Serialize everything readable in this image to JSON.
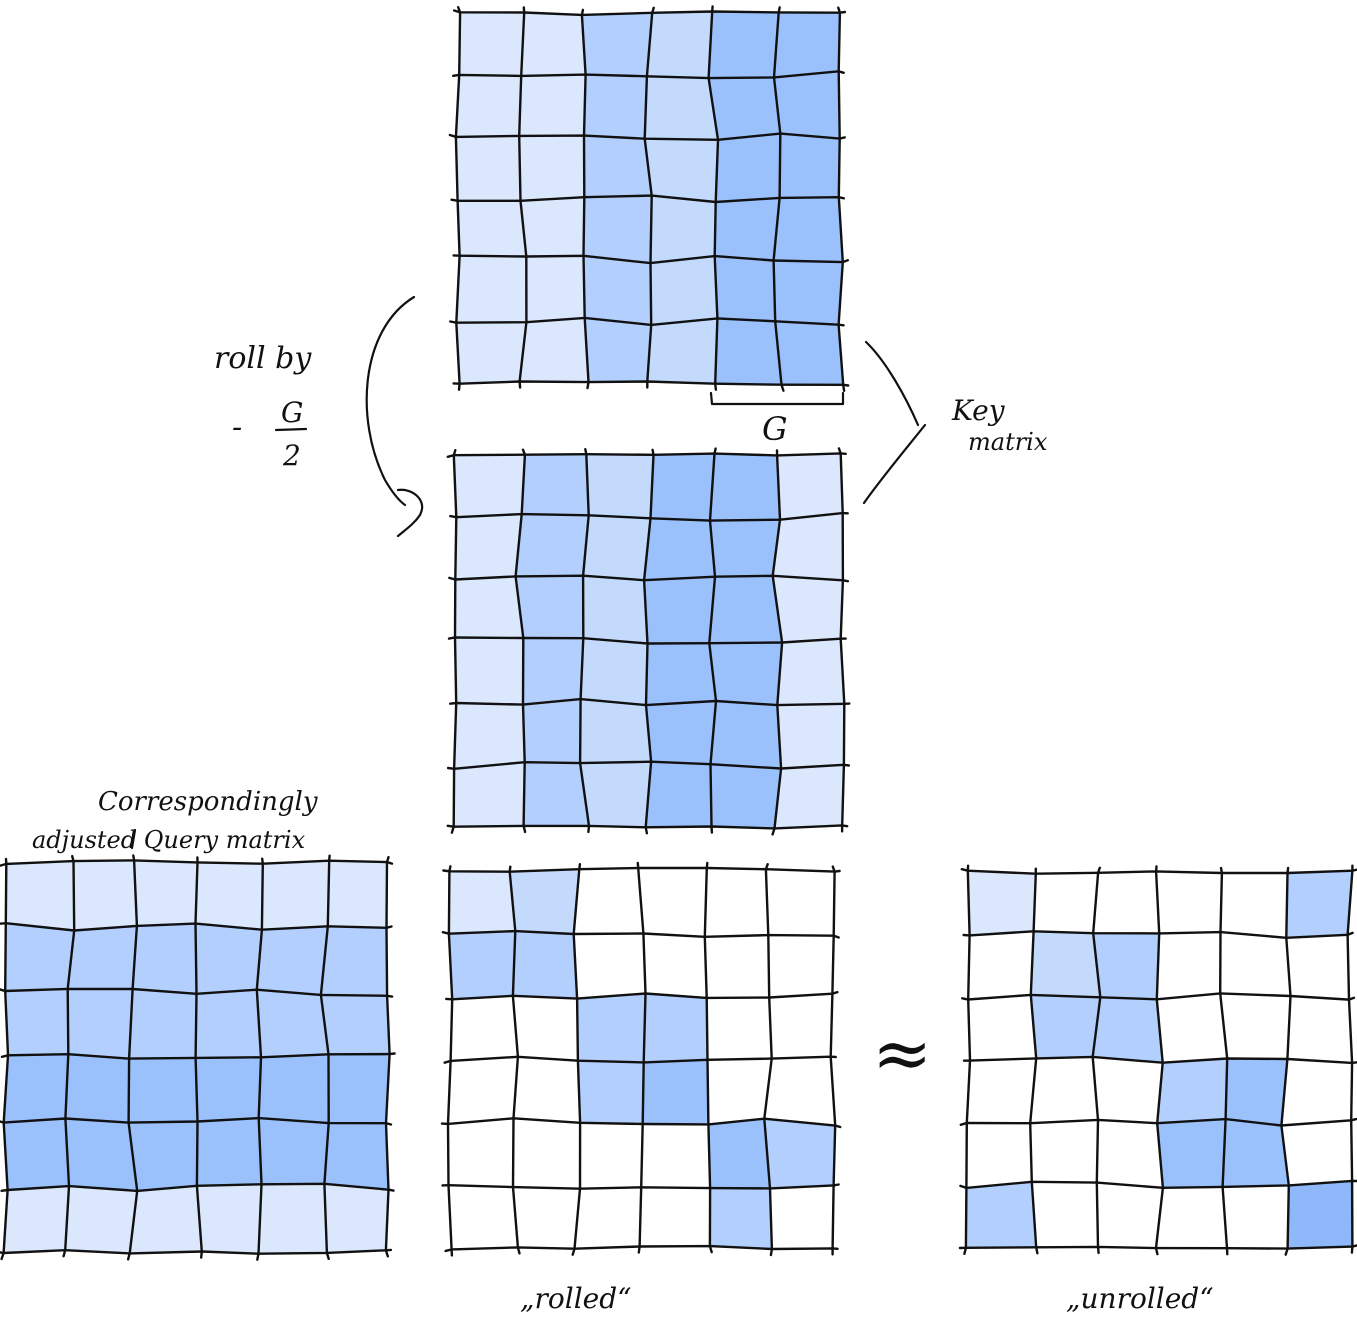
{
  "labels": {
    "roll_by": "roll by",
    "roll_minus": "-",
    "roll_numerator": "G",
    "roll_denominator": "2",
    "g_label": "G",
    "key_line1": "Key",
    "key_line2": "matrix",
    "query_line1": "Correspondingly",
    "query_line2": "adjusted Query matrix",
    "approx_symbol": "≈",
    "rolled": "„rolled“",
    "unrolled": "„unrolled“"
  },
  "colors": {
    "level_0": "#ffffff",
    "level_1": "#dbe7fd",
    "level_2": "#c4dafd",
    "level_3": "#b3cffd",
    "level_4": "#9bc1fc",
    "level_5": "#8eb8fa",
    "ink": "#111111"
  },
  "matrices": {
    "key_original": [
      [
        1,
        1,
        3,
        2,
        4,
        4
      ],
      [
        1,
        1,
        3,
        2,
        4,
        4
      ],
      [
        1,
        1,
        3,
        2,
        4,
        4
      ],
      [
        1,
        1,
        3,
        2,
        4,
        4
      ],
      [
        1,
        1,
        3,
        2,
        4,
        4
      ],
      [
        1,
        1,
        3,
        2,
        4,
        4
      ]
    ],
    "key_rolled": [
      [
        1,
        3,
        2,
        4,
        4,
        1
      ],
      [
        1,
        3,
        2,
        4,
        4,
        1
      ],
      [
        1,
        3,
        2,
        4,
        4,
        1
      ],
      [
        1,
        3,
        2,
        4,
        4,
        1
      ],
      [
        1,
        3,
        2,
        4,
        4,
        1
      ],
      [
        1,
        3,
        2,
        4,
        4,
        1
      ]
    ],
    "query": [
      [
        1,
        1,
        1,
        1,
        1,
        1
      ],
      [
        3,
        3,
        3,
        3,
        3,
        3
      ],
      [
        3,
        3,
        3,
        3,
        3,
        3
      ],
      [
        4,
        4,
        4,
        4,
        4,
        4
      ],
      [
        4,
        4,
        4,
        4,
        4,
        4
      ],
      [
        1,
        1,
        1,
        1,
        1,
        1
      ]
    ],
    "attention_rolled": [
      [
        1,
        2,
        0,
        0,
        0,
        0
      ],
      [
        3,
        3,
        0,
        0,
        0,
        0
      ],
      [
        0,
        0,
        3,
        3,
        0,
        0
      ],
      [
        0,
        0,
        3,
        4,
        0,
        0
      ],
      [
        0,
        0,
        0,
        0,
        4,
        3
      ],
      [
        0,
        0,
        0,
        0,
        3,
        0
      ]
    ],
    "attention_unrolled": [
      [
        1,
        0,
        0,
        0,
        0,
        3
      ],
      [
        0,
        2,
        3,
        0,
        0,
        0
      ],
      [
        0,
        3,
        3,
        0,
        0,
        0
      ],
      [
        0,
        0,
        0,
        3,
        4,
        0
      ],
      [
        0,
        0,
        0,
        4,
        4,
        0
      ],
      [
        3,
        0,
        0,
        0,
        0,
        5
      ]
    ]
  }
}
